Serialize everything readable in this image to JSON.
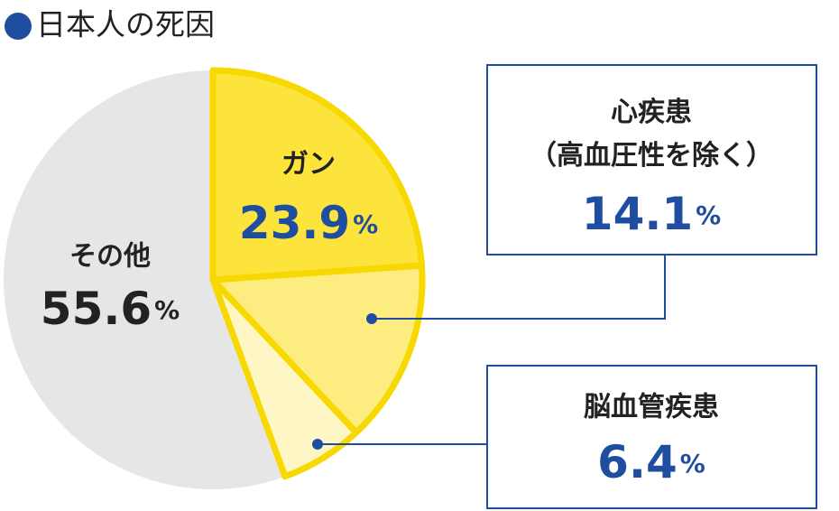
{
  "chart_data": {
    "type": "pie",
    "title": "日本人の死因",
    "categories": [
      "ガン",
      "心疾患\n（高血圧性を除く）",
      "脳血管疾患",
      "その他"
    ],
    "values": [
      23.9,
      14.1,
      6.4,
      55.6
    ],
    "unit": "%",
    "colors": [
      "#fce43c",
      "#fdec80",
      "#fef6c4",
      "#e6e6e6"
    ],
    "start_angle": 0,
    "direction": "clockwise"
  }
}
